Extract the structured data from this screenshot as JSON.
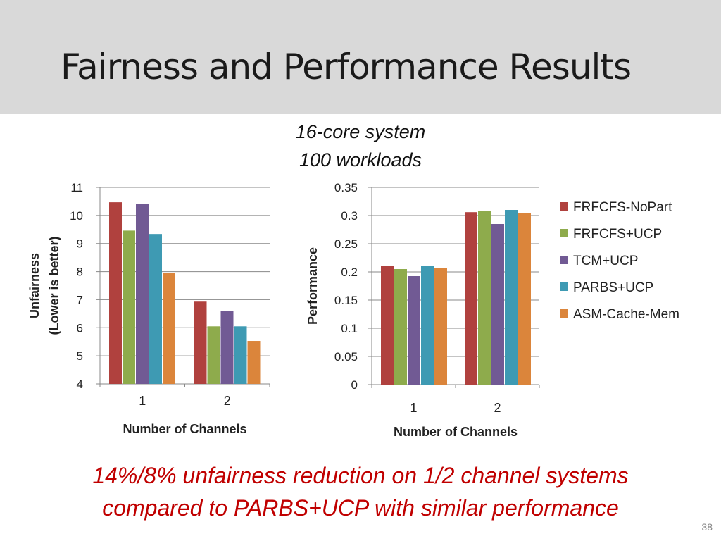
{
  "slide": {
    "title": "Fairness and Performance Results",
    "subtitle_line1": "16-core system",
    "subtitle_line2": "100 workloads",
    "footer_line1": "14%/8% unfairness reduction on 1/2 channel systems",
    "footer_line2": "compared to PARBS+UCP with similar performance",
    "page_number": "38"
  },
  "chart_data": [
    {
      "type": "bar",
      "categories": [
        "1",
        "2"
      ],
      "xlabel": "Number of Channels",
      "ylabel": "Unfairness\n(Lower is better)",
      "ylim": [
        4,
        11
      ],
      "yticks": [
        4,
        5,
        6,
        7,
        8,
        9,
        10,
        11
      ],
      "grid": true,
      "series": [
        {
          "name": "FRFCFS-NoPart",
          "color": "#b0413e",
          "values": [
            10.47,
            6.93
          ]
        },
        {
          "name": "FRFCFS+UCP",
          "color": "#8eab4c",
          "values": [
            9.46,
            6.05
          ]
        },
        {
          "name": "TCM+UCP",
          "color": "#715a94",
          "values": [
            10.42,
            6.6
          ]
        },
        {
          "name": "PARBS+UCP",
          "color": "#3e9ab3",
          "values": [
            9.34,
            6.05
          ]
        },
        {
          "name": "ASM-Cache-Mem",
          "color": "#db853b",
          "values": [
            7.96,
            5.53
          ]
        }
      ]
    },
    {
      "type": "bar",
      "categories": [
        "1",
        "2"
      ],
      "xlabel": "Number of Channels",
      "ylabel": "Performance",
      "ylim": [
        0,
        0.35
      ],
      "yticks": [
        "0",
        "0.05",
        "0.1",
        "0.15",
        "0.2",
        "0.25",
        "0.3",
        "0.35"
      ],
      "grid": true,
      "legend": "right",
      "series": [
        {
          "name": "FRFCFS-NoPart",
          "color": "#b0413e",
          "values": [
            0.21,
            0.306
          ]
        },
        {
          "name": "FRFCFS+UCP",
          "color": "#8eab4c",
          "values": [
            0.205,
            0.3075
          ]
        },
        {
          "name": "TCM+UCP",
          "color": "#715a94",
          "values": [
            0.1925,
            0.285
          ]
        },
        {
          "name": "PARBS+UCP",
          "color": "#3e9ab3",
          "values": [
            0.211,
            0.31
          ]
        },
        {
          "name": "ASM-Cache-Mem",
          "color": "#db853b",
          "values": [
            0.2075,
            0.305
          ]
        }
      ]
    }
  ]
}
